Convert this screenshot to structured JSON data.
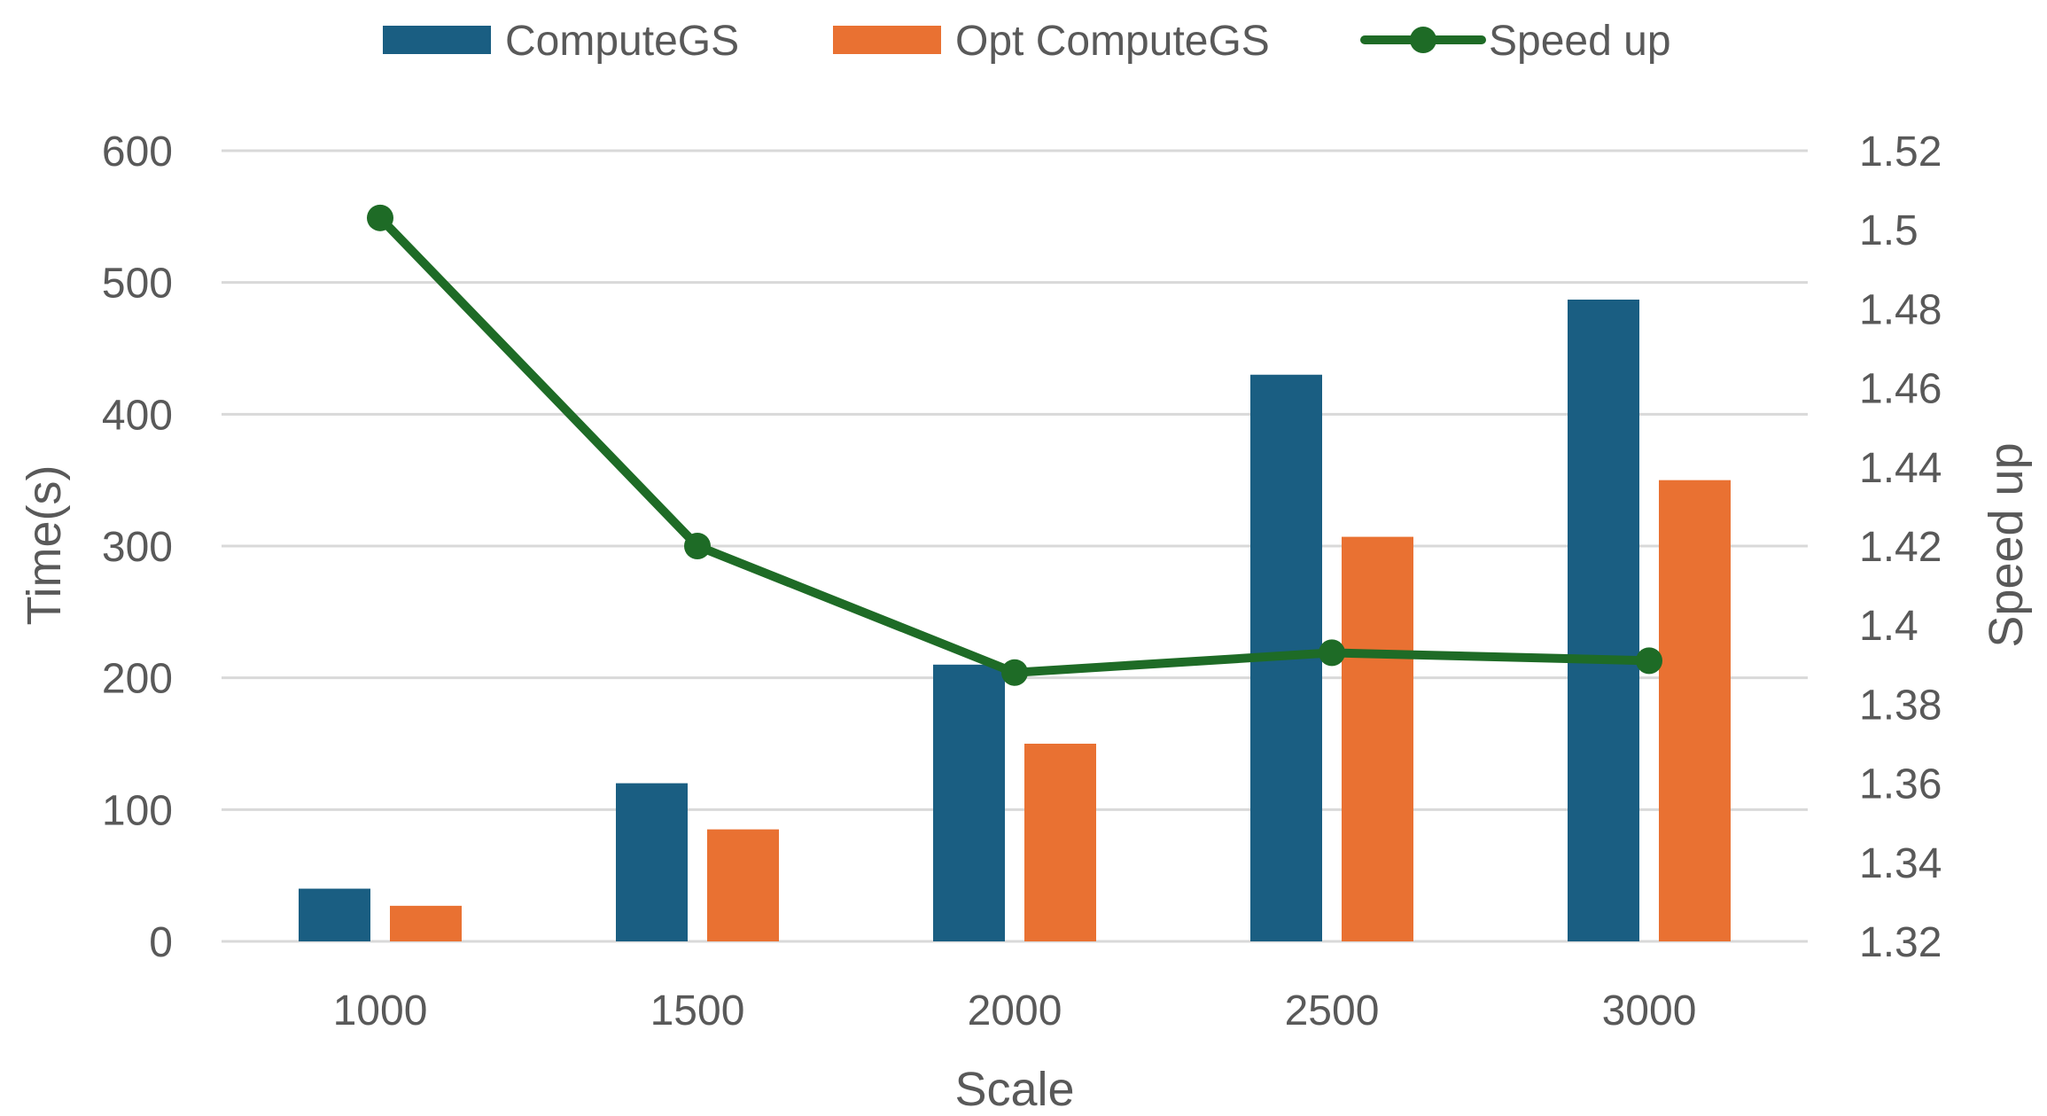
{
  "chart_data": {
    "type": "bar",
    "categories": [
      "1000",
      "1500",
      "2000",
      "2500",
      "3000"
    ],
    "series": [
      {
        "name": "ComputeGS",
        "type": "bar",
        "axis": "left",
        "color": "#1a5e82",
        "values": [
          40,
          120,
          210,
          430,
          487
        ]
      },
      {
        "name": "Opt ComputeGS",
        "type": "bar",
        "axis": "left",
        "color": "#e97132",
        "values": [
          27,
          85,
          150,
          307,
          350
        ]
      },
      {
        "name": "Speed up",
        "type": "line",
        "axis": "right",
        "color": "#1e6b26",
        "values": [
          1.503,
          1.42,
          1.388,
          1.393,
          1.391
        ]
      }
    ],
    "xlabel": "Scale",
    "ylabel": "Time(s)",
    "y2label": "Speed up",
    "ylim": [
      0,
      600
    ],
    "yticks": [
      "0",
      "100",
      "200",
      "300",
      "400",
      "500",
      "600"
    ],
    "y2lim": [
      1.32,
      1.52
    ],
    "y2ticks": [
      "1.32",
      "1.34",
      "1.36",
      "1.38",
      "1.4",
      "1.42",
      "1.44",
      "1.46",
      "1.48",
      "1.5",
      "1.52"
    ],
    "grid": true,
    "legend_position": "top"
  }
}
